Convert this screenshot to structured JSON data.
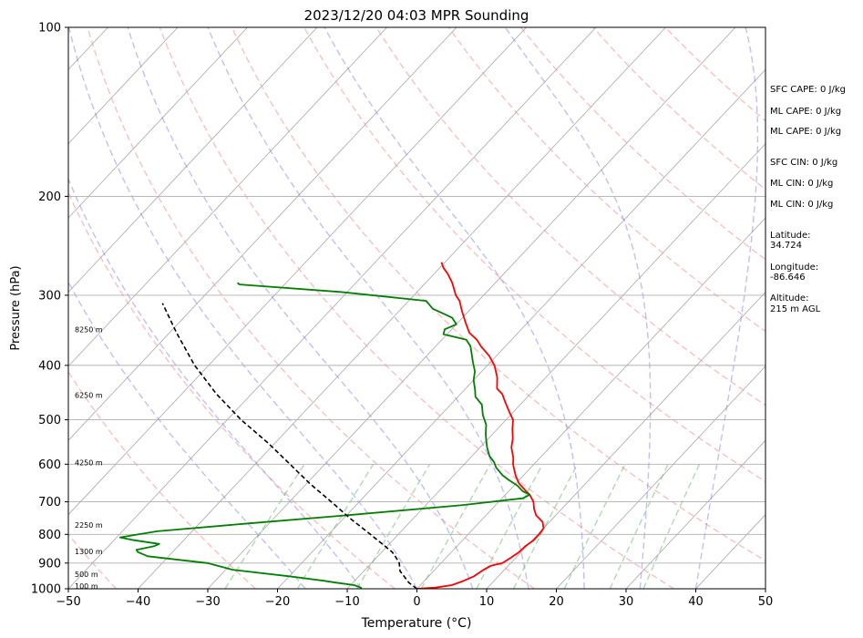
{
  "chart_data": {
    "type": "line",
    "title": "2023/12/20 04:03 MPR Sounding",
    "xlabel": "Temperature (°C)",
    "ylabel": "Pressure (hPa)",
    "xlim": [
      -50,
      50
    ],
    "ylim": [
      1000,
      100
    ],
    "y_scale": "log",
    "skew": "skew-T",
    "grid": true,
    "x_ticks": [
      -50,
      -40,
      -30,
      -20,
      -10,
      0,
      10,
      20,
      30,
      40,
      50
    ],
    "y_ticks": [
      1000,
      900,
      800,
      700,
      600,
      500,
      400,
      300,
      200,
      100
    ],
    "series": [
      {
        "role": "temperature",
        "color": "#ff0000",
        "points": [
          [
            0.0,
            1000
          ],
          [
            2.5,
            995
          ],
          [
            4.5,
            985
          ],
          [
            5.5,
            970
          ],
          [
            6.5,
            950
          ],
          [
            7.0,
            925
          ],
          [
            7.5,
            910
          ],
          [
            8.8,
            900
          ],
          [
            9.3,
            880
          ],
          [
            9.7,
            860
          ],
          [
            9.8,
            840
          ],
          [
            10.2,
            820
          ],
          [
            10.2,
            800
          ],
          [
            10.0,
            780
          ],
          [
            9.0,
            760
          ],
          [
            7.2,
            740
          ],
          [
            6.0,
            720
          ],
          [
            5.0,
            700
          ],
          [
            3.5,
            680
          ],
          [
            2.5,
            670
          ],
          [
            0.5,
            650
          ],
          [
            -1.0,
            630
          ],
          [
            -2.0,
            615
          ],
          [
            -3.0,
            600
          ],
          [
            -3.8,
            585
          ],
          [
            -5.5,
            560
          ],
          [
            -6.5,
            540
          ],
          [
            -7.8,
            520
          ],
          [
            -9.0,
            500
          ],
          [
            -10.5,
            485
          ],
          [
            -12.5,
            465
          ],
          [
            -14.0,
            450
          ],
          [
            -15.5,
            440
          ],
          [
            -17.0,
            420
          ],
          [
            -19.0,
            400
          ],
          [
            -21.0,
            385
          ],
          [
            -23.5,
            370
          ],
          [
            -25.0,
            360
          ],
          [
            -27.0,
            350
          ],
          [
            -29.0,
            335
          ],
          [
            -31.0,
            320
          ],
          [
            -32.7,
            307
          ],
          [
            -34.0,
            300
          ],
          [
            -36.2,
            285
          ],
          [
            -38.0,
            275
          ],
          [
            -39.5,
            268
          ],
          [
            -40.5,
            262
          ]
        ]
      },
      {
        "role": "dewpoint",
        "color": "#008000",
        "points": [
          [
            -8.0,
            1000
          ],
          [
            -8.2,
            995
          ],
          [
            -9.5,
            985
          ],
          [
            -12.5,
            975
          ],
          [
            -14.3,
            968
          ],
          [
            -20.0,
            950
          ],
          [
            -29.0,
            925
          ],
          [
            -33.5,
            900
          ],
          [
            -43.0,
            875
          ],
          [
            -45.0,
            860
          ],
          [
            -45.5,
            852
          ],
          [
            -43.5,
            840
          ],
          [
            -43.0,
            832
          ],
          [
            -47.5,
            818
          ],
          [
            -49.5,
            810
          ],
          [
            -45.0,
            790
          ],
          [
            -33.0,
            765
          ],
          [
            -20.0,
            740
          ],
          [
            -5.0,
            710
          ],
          [
            3.0,
            690
          ],
          [
            3.5,
            680
          ],
          [
            2.0,
            670
          ],
          [
            0.5,
            655
          ],
          [
            -1.5,
            640
          ],
          [
            -3.0,
            628
          ],
          [
            -4.0,
            618
          ],
          [
            -5.0,
            608
          ],
          [
            -6.0,
            595
          ],
          [
            -7.5,
            580
          ],
          [
            -9.0,
            560
          ],
          [
            -10.0,
            545
          ],
          [
            -11.0,
            530
          ],
          [
            -12.2,
            510
          ],
          [
            -14.0,
            490
          ],
          [
            -15.5,
            470
          ],
          [
            -17.5,
            455
          ],
          [
            -18.5,
            442
          ],
          [
            -20.0,
            425
          ],
          [
            -21.0,
            410
          ],
          [
            -22.5,
            395
          ],
          [
            -25.0,
            370
          ],
          [
            -26.5,
            360
          ],
          [
            -30.5,
            352
          ],
          [
            -31.0,
            345
          ],
          [
            -30.0,
            338
          ],
          [
            -31.5,
            329
          ],
          [
            -35.5,
            317
          ],
          [
            -37.5,
            307
          ],
          [
            -51.0,
            296
          ],
          [
            -66.5,
            287
          ],
          [
            -67.0,
            285
          ]
        ]
      },
      {
        "role": "parcel",
        "color": "#000000",
        "style": "dashed",
        "points": [
          [
            0.0,
            1000
          ],
          [
            -2.0,
            975
          ],
          [
            -4.8,
            930
          ],
          [
            -6.0,
            900
          ],
          [
            -7.2,
            880
          ],
          [
            -8.5,
            860
          ],
          [
            -14.0,
            800
          ],
          [
            -19.0,
            750
          ],
          [
            -24.0,
            700
          ],
          [
            -29.5,
            650
          ],
          [
            -35.0,
            600
          ],
          [
            -41.0,
            550
          ],
          [
            -48.0,
            500
          ],
          [
            -55.0,
            450
          ],
          [
            -62.0,
            400
          ],
          [
            -69.0,
            350
          ],
          [
            -75.0,
            310
          ]
        ]
      }
    ],
    "background_lines": {
      "dry_adiabats": "red dashed",
      "moist_adiabats": "blue dashed",
      "mixing_ratio": "green dashed",
      "isotherms": "gray solid"
    },
    "height_labels": [
      {
        "text": "100 m",
        "pressure": 988
      },
      {
        "text": "500 m",
        "pressure": 942
      },
      {
        "text": "1300 m",
        "pressure": 858
      },
      {
        "text": "2250 m",
        "pressure": 770
      },
      {
        "text": "4250 m",
        "pressure": 596
      },
      {
        "text": "6250 m",
        "pressure": 452
      },
      {
        "text": "8250 m",
        "pressure": 345
      }
    ]
  },
  "sidebar": {
    "sfc_cape": "SFC CAPE: 0 J/kg",
    "ml_cape_1": "ML CAPE: 0 J/kg",
    "ml_cape_2": "ML CAPE: 0 J/kg",
    "sfc_cin": "SFC CIN: 0 J/kg",
    "ml_cin_1": "ML CIN: 0 J/kg",
    "ml_cin_2": "ML CIN: 0 J/kg",
    "latitude_label": "Latitude:",
    "latitude_value": "34.724",
    "longitude_label": "Longitude:",
    "longitude_value": "-86.646",
    "altitude_label": "Altitude:",
    "altitude_value": "215 m AGL"
  }
}
